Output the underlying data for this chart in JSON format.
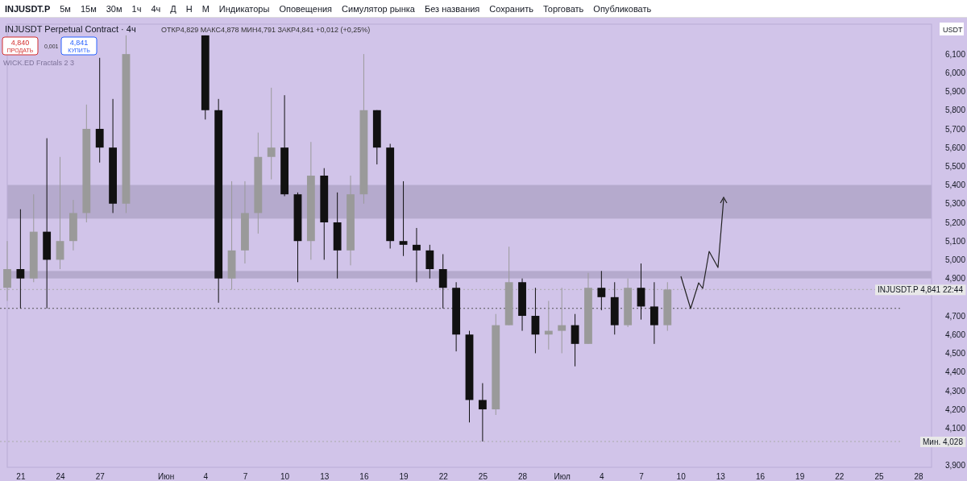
{
  "chart_data": {
    "type": "candlestick",
    "title": "INJUSDT Perpetual Contract · 4ч",
    "subtitle": "ОТКР4,829 МАКС4,878 МИН4,791 ЗАКР4,841 +0,012 (+0,25%)",
    "annotations": [
      "INJUSDT.P",
      "5м",
      "15м",
      "30м",
      "1ч",
      "4ч",
      "Д",
      "Н",
      "М",
      "Индикаторы",
      "Оповещения",
      "Симулятор рынка",
      "Без названия",
      "Сохранить",
      "Торговать",
      "Опубликовать",
      "4,840",
      "ПРОДАТЬ",
      "0,001",
      "4,841",
      "КУПИТЬ",
      "WICK.ED Fractals 2 3",
      "USDT"
    ],
    "x": [
      "--05-20",
      "--05-21",
      "--05-22",
      "--05-23",
      "--05-24",
      "--05-25",
      "--05-26",
      "--05-27",
      "--05-28",
      "--05-29",
      "--06-04",
      "--06-05",
      "--06-06",
      "--06-07",
      "--06-08",
      "--06-09",
      "--06-10",
      "--06-11",
      "--06-12",
      "--06-13",
      "--06-14",
      "--06-15",
      "--06-16",
      "--06-17",
      "--06-18",
      "--06-19",
      "--06-20",
      "--06-21",
      "--06-22",
      "--06-23",
      "--06-24",
      "--06-25",
      "--06-26",
      "--06-27",
      "--06-28",
      "--06-29",
      "--06-30",
      "--07-01",
      "--07-02",
      "--07-03",
      "--07-04",
      "--07-05",
      "--07-06",
      "--07-07",
      "--07-08",
      "--07-09"
    ],
    "ohlc": [
      [
        4.85,
        5.1,
        4.78,
        4.95
      ],
      [
        4.95,
        5.27,
        4.74,
        4.9
      ],
      [
        4.9,
        5.35,
        4.88,
        5.15
      ],
      [
        5.15,
        5.65,
        4.74,
        5.0
      ],
      [
        5.0,
        5.55,
        4.95,
        5.1
      ],
      [
        5.1,
        5.32,
        5.05,
        5.25
      ],
      [
        5.25,
        5.83,
        5.2,
        5.7
      ],
      [
        5.7,
        6.08,
        5.52,
        5.6
      ],
      [
        5.6,
        5.86,
        5.25,
        5.3
      ],
      [
        5.3,
        6.2,
        5.25,
        6.1
      ],
      [
        6.2,
        6.2,
        5.75,
        5.8
      ],
      [
        5.8,
        5.86,
        4.77,
        4.9
      ],
      [
        4.9,
        5.42,
        4.84,
        5.05
      ],
      [
        5.05,
        5.42,
        4.98,
        5.25
      ],
      [
        5.25,
        5.68,
        5.14,
        5.55
      ],
      [
        5.55,
        5.92,
        5.43,
        5.6
      ],
      [
        5.6,
        5.88,
        5.34,
        5.35
      ],
      [
        5.35,
        5.36,
        4.88,
        5.1
      ],
      [
        5.1,
        5.63,
        5.0,
        5.45
      ],
      [
        5.45,
        5.49,
        5.0,
        5.2
      ],
      [
        5.2,
        5.36,
        4.9,
        5.05
      ],
      [
        5.05,
        5.45,
        4.97,
        5.35
      ],
      [
        5.35,
        6.1,
        5.3,
        5.8
      ],
      [
        5.8,
        5.8,
        5.51,
        5.6
      ],
      [
        5.6,
        5.62,
        5.06,
        5.1
      ],
      [
        5.1,
        5.42,
        5.02,
        5.08
      ],
      [
        5.08,
        5.17,
        4.88,
        5.05
      ],
      [
        5.05,
        5.08,
        4.9,
        4.95
      ],
      [
        4.95,
        5.03,
        4.74,
        4.85
      ],
      [
        4.85,
        4.88,
        4.51,
        4.6
      ],
      [
        4.6,
        4.62,
        4.13,
        4.25
      ],
      [
        4.25,
        4.34,
        4.028,
        4.2
      ],
      [
        4.2,
        4.71,
        4.17,
        4.65
      ],
      [
        4.65,
        5.07,
        4.65,
        4.88
      ],
      [
        4.88,
        4.9,
        4.62,
        4.7
      ],
      [
        4.7,
        4.85,
        4.5,
        4.6
      ],
      [
        4.6,
        4.78,
        4.52,
        4.62
      ],
      [
        4.62,
        4.85,
        4.5,
        4.65
      ],
      [
        4.65,
        4.71,
        4.43,
        4.55
      ],
      [
        4.55,
        4.93,
        4.55,
        4.85
      ],
      [
        4.85,
        4.94,
        4.73,
        4.8
      ],
      [
        4.8,
        4.88,
        4.6,
        4.65
      ],
      [
        4.65,
        4.9,
        4.64,
        4.85
      ],
      [
        4.85,
        4.98,
        4.68,
        4.75
      ],
      [
        4.75,
        4.88,
        4.55,
        4.65
      ],
      [
        4.65,
        4.88,
        4.62,
        4.841
      ]
    ],
    "xlim": [
      "--05-20",
      "--07-29"
    ],
    "xticks": [
      {
        "value": "--05-21",
        "label": "21"
      },
      {
        "value": "--05-24",
        "label": "24"
      },
      {
        "value": "--05-27",
        "label": "27"
      },
      {
        "value": "--06-01",
        "label": "Июн"
      },
      {
        "value": "--06-04",
        "label": "4"
      },
      {
        "value": "--06-07",
        "label": "7"
      },
      {
        "value": "--06-10",
        "label": "10"
      },
      {
        "value": "--06-13",
        "label": "13"
      },
      {
        "value": "--06-16",
        "label": "16"
      },
      {
        "value": "--06-19",
        "label": "19"
      },
      {
        "value": "--06-22",
        "label": "22"
      },
      {
        "value": "--06-25",
        "label": "25"
      },
      {
        "value": "--06-28",
        "label": "28"
      },
      {
        "value": "--07-01",
        "label": "Июл"
      },
      {
        "value": "--07-04",
        "label": "4"
      },
      {
        "value": "--07-07",
        "label": "7"
      },
      {
        "value": "--07-10",
        "label": "10"
      },
      {
        "value": "--07-13",
        "label": "13"
      },
      {
        "value": "--07-16",
        "label": "16"
      },
      {
        "value": "--07-19",
        "label": "19"
      },
      {
        "value": "--07-22",
        "label": "22"
      },
      {
        "value": "--07-25",
        "label": "25"
      },
      {
        "value": "--07-28",
        "label": "28"
      }
    ],
    "ylim": [
      3.89,
      6.26
    ],
    "yticks": [
      {
        "value": 3.9,
        "label": "3,900"
      },
      {
        "value": 4.1,
        "label": "4,100"
      },
      {
        "value": 4.2,
        "label": "4,200"
      },
      {
        "value": 4.3,
        "label": "4,300"
      },
      {
        "value": 4.4,
        "label": "4,400"
      },
      {
        "value": 4.5,
        "label": "4,500"
      },
      {
        "value": 4.6,
        "label": "4,600"
      },
      {
        "value": 4.7,
        "label": "4,700"
      },
      {
        "value": 4.9,
        "label": "4,900"
      },
      {
        "value": 5.0,
        "label": "5,000"
      },
      {
        "value": 5.1,
        "label": "5,100"
      },
      {
        "value": 5.2,
        "label": "5,200"
      },
      {
        "value": 5.3,
        "label": "5,300"
      },
      {
        "value": 5.4,
        "label": "5,400"
      },
      {
        "value": 5.5,
        "label": "5,500"
      },
      {
        "value": 5.6,
        "label": "5,600"
      },
      {
        "value": 5.7,
        "label": "5,700"
      },
      {
        "value": 5.8,
        "label": "5,800"
      },
      {
        "value": 5.9,
        "label": "5,900"
      },
      {
        "value": 6.0,
        "label": "6,000"
      },
      {
        "value": 6.1,
        "label": "6,100"
      }
    ],
    "bands": [
      {
        "axis": "y",
        "from": 5.22,
        "to": 5.4,
        "color": "#b0a6c8"
      },
      {
        "axis": "y",
        "from": 4.9,
        "to": 4.94,
        "color": "#b0a6c8"
      }
    ],
    "ref_lines": [
      {
        "axis": "y",
        "value": 4.74,
        "line_style": "dotted",
        "color": "#555555"
      },
      {
        "axis": "y",
        "value": 4.841,
        "label": "INJUSDT.P 4,841 22:44",
        "line_style": "dotted",
        "color": "#aaaaaa"
      },
      {
        "axis": "y",
        "value": 4.028,
        "label": "Мин. 4,028",
        "line_style": "dotted",
        "color": "#aaaaaa"
      }
    ],
    "grid": false
  }
}
